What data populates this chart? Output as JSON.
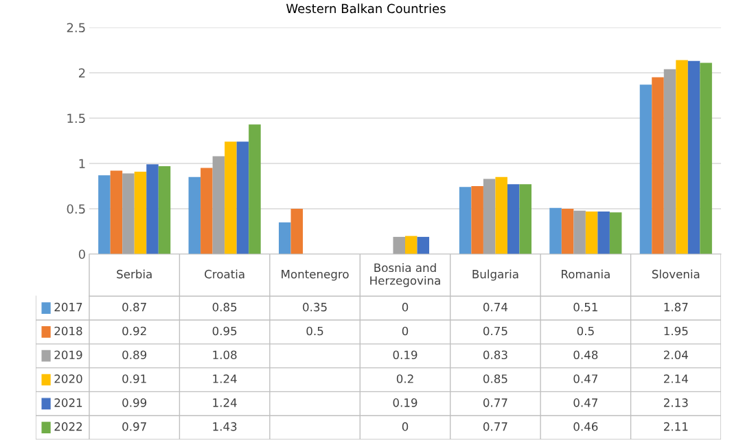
{
  "chart_data": {
    "type": "bar",
    "title": "Western Balkan Countries",
    "categories": [
      "Serbia",
      "Croatia",
      "Montenegro",
      "Bosnia and\nHerzegovina",
      "Bulgaria",
      "Romania",
      "Slovenia"
    ],
    "series": [
      {
        "name": "2017",
        "color": "#5b9bd5",
        "values": [
          0.87,
          0.85,
          0.35,
          0,
          0.74,
          0.51,
          1.87
        ]
      },
      {
        "name": "2018",
        "color": "#ed7d31",
        "values": [
          0.92,
          0.95,
          0.5,
          0,
          0.75,
          0.5,
          1.95
        ]
      },
      {
        "name": "2019",
        "color": "#a5a5a5",
        "values": [
          0.89,
          1.08,
          null,
          0.19,
          0.83,
          0.48,
          2.04
        ]
      },
      {
        "name": "2020",
        "color": "#ffc000",
        "values": [
          0.91,
          1.24,
          null,
          0.2,
          0.85,
          0.47,
          2.14
        ]
      },
      {
        "name": "2021",
        "color": "#4472c4",
        "values": [
          0.99,
          1.24,
          null,
          0.19,
          0.77,
          0.47,
          2.13
        ]
      },
      {
        "name": "2022",
        "color": "#70ad47",
        "values": [
          0.97,
          1.43,
          null,
          0,
          0.77,
          0.46,
          2.11
        ]
      }
    ],
    "ylim": [
      0,
      2.5
    ],
    "yticks": [
      0,
      0.5,
      1,
      1.5,
      2,
      2.5
    ],
    "grid": "y",
    "legend": "bottom",
    "data_labels": true
  }
}
